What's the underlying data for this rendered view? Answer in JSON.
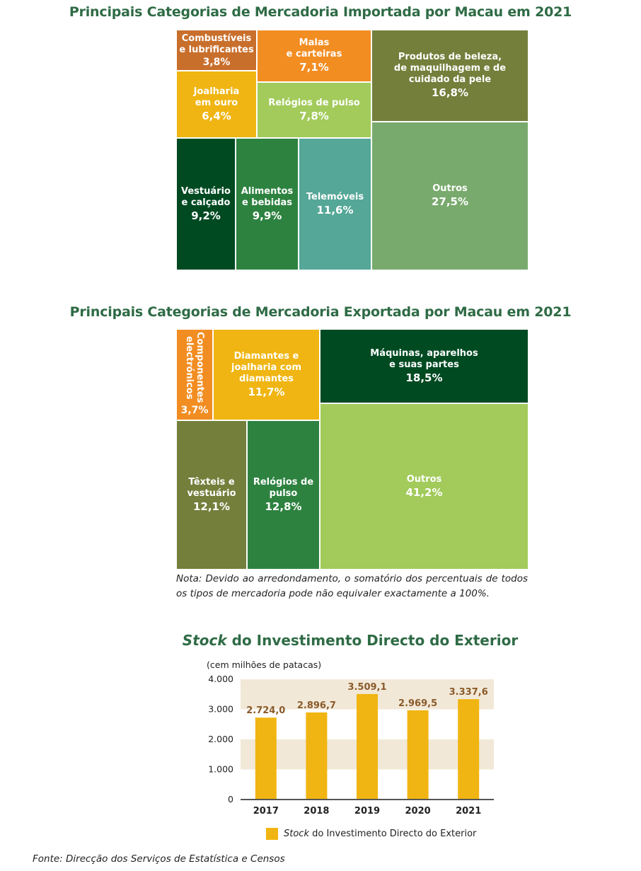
{
  "imports": {
    "title": "Principais Categorias de Mercadoria Importada por Macau em 2021",
    "tiles": [
      {
        "label": "Combustíveis\ne lubrificantes",
        "pct": "3,8%",
        "color": "#c96f2c"
      },
      {
        "label": "Malas\ne carteiras",
        "pct": "7,1%",
        "color": "#f28d22"
      },
      {
        "label": "Produtos de beleza,\nde maquilhagem e de\ncuidado da pele",
        "pct": "16,8%",
        "color": "#737f3b"
      },
      {
        "label": "Joalharia\nem ouro",
        "pct": "6,4%",
        "color": "#f0b512"
      },
      {
        "label": "Relógios de pulso",
        "pct": "7,8%",
        "color": "#a2cb5b"
      },
      {
        "label": "Vestuário\ne calçado",
        "pct": "9,2%",
        "color": "#004a22"
      },
      {
        "label": "Alimentos\ne bebidas",
        "pct": "9,9%",
        "color": "#2e8240"
      },
      {
        "label": "Telemóveis",
        "pct": "11,6%",
        "color": "#55a797"
      },
      {
        "label": "Outros",
        "pct": "27,5%",
        "color": "#79aa6d"
      }
    ]
  },
  "exports": {
    "title": "Principais Categorias de Mercadoria Exportada por Macau em 2021",
    "tiles": [
      {
        "label": "Componentes\nelectrónicos",
        "pct": "3,7%",
        "color": "#f28d22"
      },
      {
        "label": "Diamantes e\njoalharia com\ndiamantes",
        "pct": "11,7%",
        "color": "#f0b512"
      },
      {
        "label": "Máquinas, aparelhos\ne suas partes",
        "pct": "18,5%",
        "color": "#004a22"
      },
      {
        "label": "Têxteis e\nvestuário",
        "pct": "12,1%",
        "color": "#737f3b"
      },
      {
        "label": "Relógios de\npulso",
        "pct": "12,8%",
        "color": "#2e8240"
      },
      {
        "label": "Outros",
        "pct": "41,2%",
        "color": "#a2cb5b"
      }
    ],
    "note": "Nota: Devido ao arredondamento, o somatório dos percentuais de todos os tipos de mercadoria pode não equivaler exactamente a 100%."
  },
  "fdi": {
    "title_italic": "Stock",
    "title_rest": " do Investimento Directo do Exterior",
    "unit": "(cem milhões de patacas)",
    "legend_italic": "Stock",
    "legend_rest": " do Investimento Directo do Exterior"
  },
  "chart_data": {
    "type": "bar",
    "categories": [
      "2017",
      "2018",
      "2019",
      "2020",
      "2021"
    ],
    "values": [
      2724.0,
      2896.7,
      3509.1,
      2969.5,
      3337.6
    ],
    "value_labels": [
      "2.724,0",
      "2.896,7",
      "3.509,1",
      "2.969,5",
      "3.337,6"
    ],
    "ylim": [
      0,
      4000
    ],
    "yticks": [
      0,
      1000,
      2000,
      3000,
      4000
    ],
    "ytick_labels": [
      "0",
      "1.000",
      "2.000",
      "3.000",
      "4.000"
    ],
    "bar_color": "#f0b512",
    "band_color": "#f2e8d7",
    "value_label_color": "#8a5a2a"
  },
  "source": "Fonte: Direcção dos Serviços de Estatística e Censos"
}
